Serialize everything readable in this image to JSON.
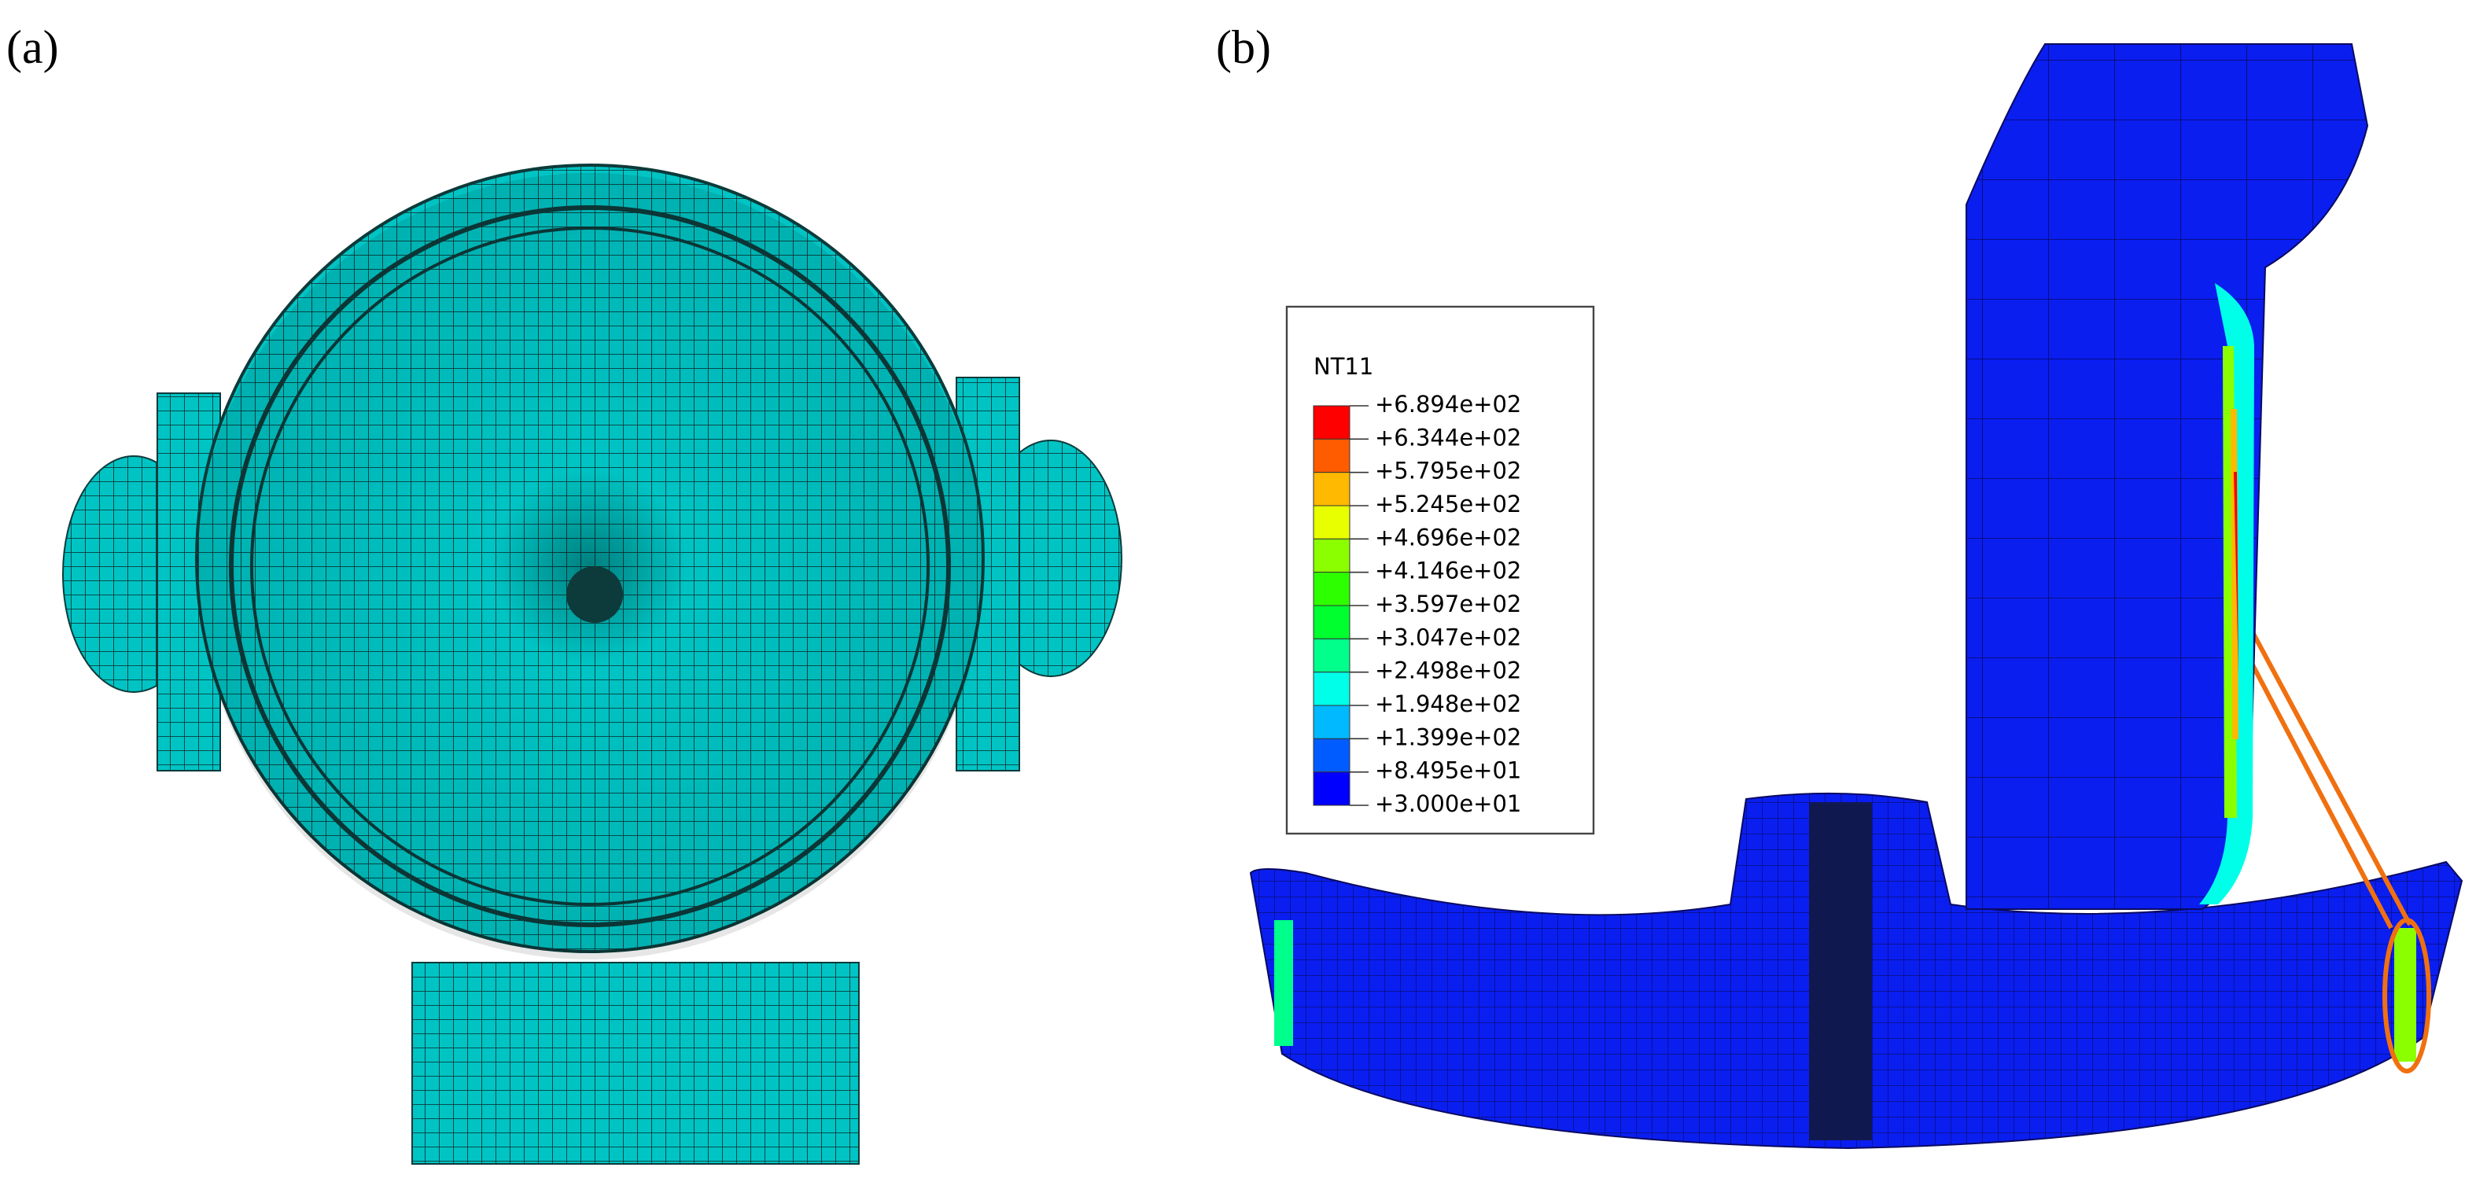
{
  "panels": {
    "a": {
      "label": "(a)"
    },
    "b": {
      "label": "(b)"
    }
  },
  "legend": {
    "title": "NT11",
    "labels": [
      "+6.894e+02",
      "+6.344e+02",
      "+5.795e+02",
      "+5.245e+02",
      "+4.696e+02",
      "+4.146e+02",
      "+3.597e+02",
      "+3.047e+02",
      "+2.498e+02",
      "+1.948e+02",
      "+1.399e+02",
      "+8.495e+01",
      "+3.000e+01"
    ],
    "colors": [
      "#ff0000",
      "#ff5c00",
      "#ffb900",
      "#e8ff00",
      "#8bff00",
      "#2eff00",
      "#00ff2e",
      "#00ff8b",
      "#00ffe8",
      "#00b9ff",
      "#005cff",
      "#0000ff"
    ]
  }
}
